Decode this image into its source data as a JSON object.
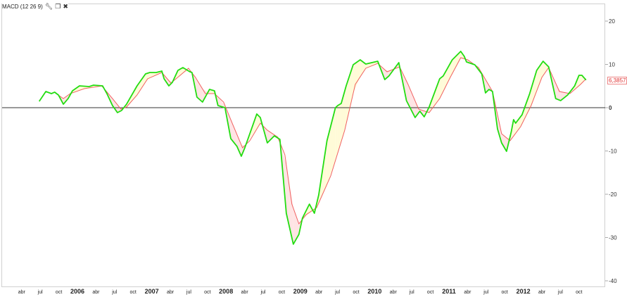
{
  "indicator": {
    "title": "MACD (12 26 9)",
    "icons": [
      "wrench-icon",
      "window-restore-icon",
      "close-icon"
    ]
  },
  "last_value_label": "6,3857",
  "colors": {
    "macd": "#22dd11",
    "signal": "#f06060",
    "fill_above": "#fffbd8",
    "fill_below": "#ffe4e4",
    "zero_line": "#333333",
    "badge": "#e03030"
  },
  "chart_data": {
    "type": "line",
    "title": "MACD (12 26 9)",
    "xlabel": "",
    "ylabel": "",
    "ylim": [
      -42,
      24
    ],
    "xlim": [
      "2005-01-01",
      "2012-12-31"
    ],
    "y_ticks": [
      20,
      10,
      0,
      -10,
      -20,
      -30,
      -40
    ],
    "x_ticks": [
      {
        "label": "abr",
        "date": "2005-04-01",
        "bold": false
      },
      {
        "label": "jul",
        "date": "2005-07-01",
        "bold": false
      },
      {
        "label": "oct",
        "date": "2005-10-01",
        "bold": false
      },
      {
        "label": "2006",
        "date": "2006-01-01",
        "bold": true
      },
      {
        "label": "abr",
        "date": "2006-04-01",
        "bold": false
      },
      {
        "label": "jul",
        "date": "2006-07-01",
        "bold": false
      },
      {
        "label": "oct",
        "date": "2006-10-01",
        "bold": false
      },
      {
        "label": "2007",
        "date": "2007-01-01",
        "bold": true
      },
      {
        "label": "abr",
        "date": "2007-04-01",
        "bold": false
      },
      {
        "label": "jul",
        "date": "2007-07-01",
        "bold": false
      },
      {
        "label": "oct",
        "date": "2007-10-01",
        "bold": false
      },
      {
        "label": "2008",
        "date": "2008-01-01",
        "bold": true
      },
      {
        "label": "abr",
        "date": "2008-04-01",
        "bold": false
      },
      {
        "label": "jul",
        "date": "2008-07-01",
        "bold": false
      },
      {
        "label": "oct",
        "date": "2008-10-01",
        "bold": false
      },
      {
        "label": "2009",
        "date": "2009-01-01",
        "bold": true
      },
      {
        "label": "abr",
        "date": "2009-04-01",
        "bold": false
      },
      {
        "label": "jul",
        "date": "2009-07-01",
        "bold": false
      },
      {
        "label": "oct",
        "date": "2009-10-01",
        "bold": false
      },
      {
        "label": "2010",
        "date": "2010-01-01",
        "bold": true
      },
      {
        "label": "abr",
        "date": "2010-04-01",
        "bold": false
      },
      {
        "label": "jul",
        "date": "2010-07-01",
        "bold": false
      },
      {
        "label": "oct",
        "date": "2010-10-01",
        "bold": false
      },
      {
        "label": "2011",
        "date": "2011-01-01",
        "bold": true
      },
      {
        "label": "abr",
        "date": "2011-04-01",
        "bold": false
      },
      {
        "label": "jul",
        "date": "2011-07-01",
        "bold": false
      },
      {
        "label": "oct",
        "date": "2011-10-01",
        "bold": false
      },
      {
        "label": "2012",
        "date": "2012-01-01",
        "bold": true
      },
      {
        "label": "abr",
        "date": "2012-04-01",
        "bold": false
      },
      {
        "label": "jul",
        "date": "2012-07-01",
        "bold": false
      },
      {
        "label": "oct",
        "date": "2012-10-01",
        "bold": false
      }
    ],
    "grid": false,
    "series": [
      {
        "key": "macd",
        "points": [
          [
            "2005-06-26",
            1.46
          ],
          [
            "2005-07-28",
            3.74
          ],
          [
            "2005-08-25",
            3.25
          ],
          [
            "2005-09-11",
            3.58
          ],
          [
            "2005-09-29",
            2.93
          ],
          [
            "2005-10-23",
            0.81
          ],
          [
            "2005-11-16",
            2.11
          ],
          [
            "2005-12-07",
            3.9
          ],
          [
            "2006-01-11",
            5.04
          ],
          [
            "2006-02-28",
            4.88
          ],
          [
            "2006-03-19",
            5.2
          ],
          [
            "2006-05-03",
            5.04
          ],
          [
            "2006-05-24",
            3.25
          ],
          [
            "2006-06-21",
            0.49
          ],
          [
            "2006-07-15",
            -1.14
          ],
          [
            "2006-08-05",
            -0.65
          ],
          [
            "2006-08-29",
            0.81
          ],
          [
            "2006-10-20",
            5.04
          ],
          [
            "2006-12-01",
            7.8
          ],
          [
            "2006-12-22",
            8.13
          ],
          [
            "2007-01-23",
            8.13
          ],
          [
            "2007-02-20",
            8.46
          ],
          [
            "2007-03-01",
            6.67
          ],
          [
            "2007-03-24",
            5.04
          ],
          [
            "2007-04-11",
            5.85
          ],
          [
            "2007-05-08",
            8.62
          ],
          [
            "2007-06-02",
            9.27
          ],
          [
            "2007-07-06",
            8.29
          ],
          [
            "2007-07-16",
            8.13
          ],
          [
            "2007-08-10",
            2.44
          ],
          [
            "2007-09-07",
            1.3
          ],
          [
            "2007-10-11",
            4.23
          ],
          [
            "2007-11-05",
            3.9
          ],
          [
            "2007-11-22",
            0.49
          ],
          [
            "2007-12-26",
            0
          ],
          [
            "2008-01-24",
            -7.15
          ],
          [
            "2008-02-24",
            -8.94
          ],
          [
            "2008-03-15",
            -11.22
          ],
          [
            "2008-04-02",
            -9.27
          ],
          [
            "2008-05-30",
            -1.46
          ],
          [
            "2008-06-17",
            -2.28
          ],
          [
            "2008-07-21",
            -8.13
          ],
          [
            "2008-08-25",
            -6.5
          ],
          [
            "2008-09-22",
            -7.32
          ],
          [
            "2008-10-23",
            -24.39
          ],
          [
            "2008-11-27",
            -31.54
          ],
          [
            "2008-12-24",
            -29.27
          ],
          [
            "2009-01-11",
            -25.53
          ],
          [
            "2009-02-15",
            -22.28
          ],
          [
            "2009-03-09",
            -24.39
          ],
          [
            "2009-03-30",
            -20.16
          ],
          [
            "2009-05-10",
            -7.64
          ],
          [
            "2009-06-21",
            0
          ],
          [
            "2009-07-02",
            0.49
          ],
          [
            "2009-07-19",
            0.98
          ],
          [
            "2009-08-13",
            5.04
          ],
          [
            "2009-09-17",
            9.92
          ],
          [
            "2009-10-21",
            11.06
          ],
          [
            "2009-11-18",
            10.08
          ],
          [
            "2010-01-16",
            10.73
          ],
          [
            "2010-02-20",
            6.5
          ],
          [
            "2010-03-10",
            7.32
          ],
          [
            "2010-04-28",
            10.41
          ],
          [
            "2010-06-05",
            1.63
          ],
          [
            "2010-07-17",
            -2.28
          ],
          [
            "2010-08-10",
            -0.81
          ],
          [
            "2010-09-01",
            -2.11
          ],
          [
            "2010-09-25",
            0.16
          ],
          [
            "2010-11-16",
            6.67
          ],
          [
            "2010-12-03",
            7.32
          ],
          [
            "2011-01-17",
            11.06
          ],
          [
            "2011-02-28",
            13.01
          ],
          [
            "2011-03-15",
            11.87
          ],
          [
            "2011-03-26",
            10.57
          ],
          [
            "2011-05-06",
            9.92
          ],
          [
            "2011-06-10",
            7.8
          ],
          [
            "2011-06-28",
            3.41
          ],
          [
            "2011-07-15",
            4.23
          ],
          [
            "2011-08-02",
            3.74
          ],
          [
            "2011-08-26",
            -4.88
          ],
          [
            "2011-09-16",
            -8.13
          ],
          [
            "2011-10-10",
            -10.08
          ],
          [
            "2011-11-03",
            -5.53
          ],
          [
            "2011-11-14",
            -2.76
          ],
          [
            "2011-11-24",
            -3.58
          ],
          [
            "2011-12-25",
            -1.63
          ],
          [
            "2012-02-02",
            3.25
          ],
          [
            "2012-03-06",
            8.62
          ],
          [
            "2012-04-07",
            10.73
          ],
          [
            "2012-05-04",
            9.43
          ],
          [
            "2012-06-08",
            2.11
          ],
          [
            "2012-07-02",
            1.63
          ],
          [
            "2012-08-06",
            2.93
          ],
          [
            "2012-09-10",
            5.04
          ],
          [
            "2012-10-01",
            7.48
          ],
          [
            "2012-10-15",
            7.48
          ],
          [
            "2012-11-05",
            6.39
          ]
        ]
      },
      {
        "key": "signal",
        "points": [
          [
            "2005-09-18",
            3.25
          ],
          [
            "2005-10-23",
            2.11
          ],
          [
            "2005-11-26",
            3.25
          ],
          [
            "2006-02-04",
            4.39
          ],
          [
            "2006-04-29",
            5.04
          ],
          [
            "2006-06-21",
            2.11
          ],
          [
            "2006-08-02",
            -0.33
          ],
          [
            "2006-08-29",
            0.16
          ],
          [
            "2006-10-20",
            2.93
          ],
          [
            "2006-12-11",
            6.67
          ],
          [
            "2007-02-20",
            8.13
          ],
          [
            "2007-04-04",
            5.69
          ],
          [
            "2007-05-15",
            7.32
          ],
          [
            "2007-06-29",
            9.11
          ],
          [
            "2007-08-03",
            6.99
          ],
          [
            "2007-09-21",
            3.25
          ],
          [
            "2007-11-05",
            3.25
          ],
          [
            "2007-12-19",
            1.3
          ],
          [
            "2008-02-01",
            -3.58
          ],
          [
            "2008-03-21",
            -9.27
          ],
          [
            "2008-04-26",
            -7.64
          ],
          [
            "2008-06-17",
            -3.58
          ],
          [
            "2008-07-21",
            -5.2
          ],
          [
            "2008-09-12",
            -6.83
          ],
          [
            "2008-10-16",
            -10.89
          ],
          [
            "2008-11-20",
            -22.28
          ],
          [
            "2008-12-24",
            -26.83
          ],
          [
            "2009-01-29",
            -24.72
          ],
          [
            "2009-03-20",
            -23.09
          ],
          [
            "2009-05-28",
            -15.77
          ],
          [
            "2009-08-06",
            -5.2
          ],
          [
            "2009-09-27",
            5.37
          ],
          [
            "2009-11-18",
            9.11
          ],
          [
            "2010-01-16",
            10.24
          ],
          [
            "2010-03-01",
            8.29
          ],
          [
            "2010-05-02",
            9.43
          ],
          [
            "2010-06-13",
            5.37
          ],
          [
            "2010-08-04",
            -0.33
          ],
          [
            "2010-09-25",
            -1.14
          ],
          [
            "2010-11-16",
            2.11
          ],
          [
            "2011-01-07",
            6.99
          ],
          [
            "2011-02-28",
            11.54
          ],
          [
            "2011-04-02",
            11.06
          ],
          [
            "2011-05-24",
            9.27
          ],
          [
            "2011-08-02",
            3.74
          ],
          [
            "2011-09-16",
            -6.02
          ],
          [
            "2011-10-27",
            -7.64
          ],
          [
            "2011-12-18",
            -4.39
          ],
          [
            "2012-02-09",
            0.49
          ],
          [
            "2012-04-01",
            6.99
          ],
          [
            "2012-05-04",
            9.27
          ],
          [
            "2012-06-26",
            3.74
          ],
          [
            "2012-08-17",
            3.25
          ],
          [
            "2012-10-08",
            5.37
          ],
          [
            "2012-11-05",
            6.67
          ]
        ]
      }
    ]
  }
}
